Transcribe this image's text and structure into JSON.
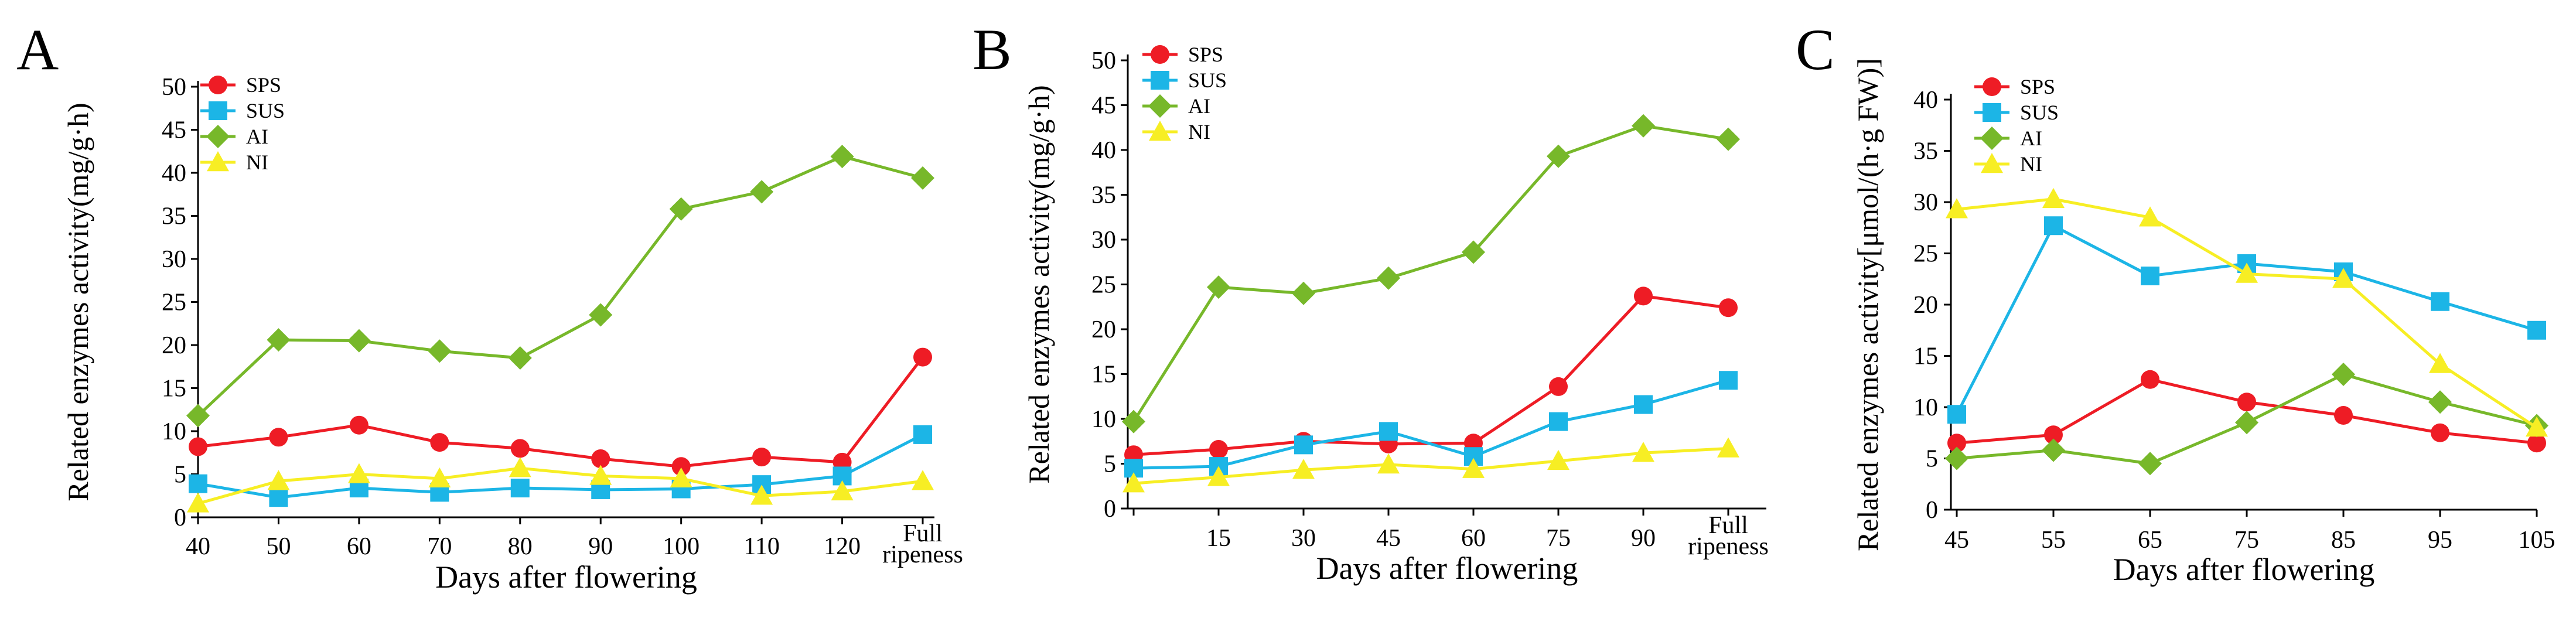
{
  "figure": {
    "colors": {
      "SPS": "#ee1c25",
      "SUS": "#1cb5e6",
      "AI": "#77b82a",
      "NI": "#f7ee24"
    },
    "markers": {
      "SPS": "circle",
      "SUS": "square",
      "AI": "diamond",
      "NI": "triangle"
    }
  },
  "chart_data": [
    {
      "panel": "A",
      "type": "line",
      "xlabel": "Days after flowering",
      "ylabel": "Related enzymes activity(mg/g·h)",
      "categories": [
        "40",
        "50",
        "60",
        "70",
        "80",
        "90",
        "100",
        "110",
        "120",
        "Full ripeness"
      ],
      "category_label_lines": [
        [
          "40"
        ],
        [
          "50"
        ],
        [
          "60"
        ],
        [
          "70"
        ],
        [
          "80"
        ],
        [
          "90"
        ],
        [
          "100"
        ],
        [
          "110"
        ],
        [
          "120"
        ],
        [
          "Full",
          "ripeness"
        ]
      ],
      "ylim": [
        0,
        50
      ],
      "yticks": [
        0,
        5,
        10,
        15,
        20,
        25,
        30,
        35,
        40,
        45,
        50
      ],
      "legend_position": "top-left",
      "series": [
        {
          "name": "SPS",
          "values": [
            8.2,
            9.3,
            10.7,
            8.7,
            8.0,
            6.8,
            5.9,
            7.0,
            6.4,
            18.6
          ]
        },
        {
          "name": "SUS",
          "values": [
            3.9,
            2.3,
            3.4,
            2.9,
            3.4,
            3.2,
            3.3,
            3.8,
            4.8,
            9.6
          ]
        },
        {
          "name": "AI",
          "values": [
            11.8,
            20.6,
            20.5,
            19.3,
            18.5,
            23.5,
            35.8,
            37.8,
            41.9,
            39.4
          ]
        },
        {
          "name": "NI",
          "values": [
            1.6,
            4.2,
            5.0,
            4.5,
            5.7,
            4.8,
            4.5,
            2.5,
            3.0,
            4.2
          ]
        }
      ]
    },
    {
      "panel": "B",
      "type": "line",
      "xlabel": "Days after flowering",
      "ylabel": "Related enzymes activity(mg/g·h)",
      "categories": [
        "",
        "15",
        "30",
        "45",
        "60",
        "75",
        "90",
        "Full ripeness"
      ],
      "category_label_lines": [
        [],
        [
          "15"
        ],
        [
          "30"
        ],
        [
          "45"
        ],
        [
          "60"
        ],
        [
          "75"
        ],
        [
          "90"
        ],
        [
          "Full",
          "ripeness"
        ]
      ],
      "ylim": [
        0,
        50
      ],
      "yticks": [
        0,
        5,
        10,
        15,
        20,
        25,
        30,
        35,
        40,
        45,
        50
      ],
      "legend_position": "top-left",
      "series": [
        {
          "name": "SPS",
          "values": [
            6.0,
            6.6,
            7.5,
            7.2,
            7.3,
            13.6,
            23.7,
            22.4
          ]
        },
        {
          "name": "SUS",
          "values": [
            4.5,
            4.7,
            7.1,
            8.6,
            5.8,
            9.7,
            11.6,
            14.3
          ]
        },
        {
          "name": "AI",
          "values": [
            9.7,
            24.7,
            24.0,
            25.7,
            28.6,
            39.3,
            42.7,
            41.2
          ]
        },
        {
          "name": "NI",
          "values": [
            2.8,
            3.5,
            4.3,
            4.9,
            4.4,
            5.3,
            6.2,
            6.7
          ]
        }
      ]
    },
    {
      "panel": "C",
      "type": "line",
      "xlabel": "Days after flowering",
      "ylabel": "Related enzymes activity[μmol/(h·g FW)]",
      "categories": [
        "45",
        "55",
        "65",
        "75",
        "85",
        "95",
        "105"
      ],
      "category_label_lines": [
        [
          "45"
        ],
        [
          "55"
        ],
        [
          "65"
        ],
        [
          "75"
        ],
        [
          "85"
        ],
        [
          "95"
        ],
        [
          "105"
        ]
      ],
      "ylim": [
        0,
        40
      ],
      "yticks": [
        0,
        5,
        10,
        15,
        20,
        25,
        30,
        35,
        40
      ],
      "legend_position": "top-left",
      "series": [
        {
          "name": "SPS",
          "values": [
            6.5,
            7.3,
            12.7,
            10.5,
            9.2,
            7.5,
            6.5
          ]
        },
        {
          "name": "SUS",
          "values": [
            9.3,
            27.7,
            22.8,
            24.0,
            23.2,
            20.3,
            17.5
          ]
        },
        {
          "name": "AI",
          "values": [
            5.0,
            5.8,
            4.5,
            8.5,
            13.2,
            10.5,
            8.2
          ]
        },
        {
          "name": "NI",
          "values": [
            29.3,
            30.3,
            28.5,
            23.0,
            22.5,
            14.2,
            8.0
          ]
        }
      ]
    }
  ]
}
